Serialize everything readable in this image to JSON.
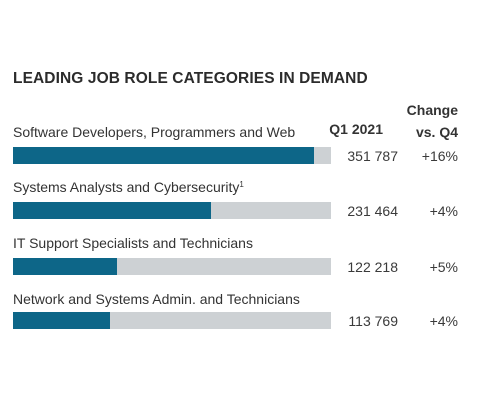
{
  "chart_data": {
    "type": "bar",
    "title": "LEADING JOB ROLE CATEGORIES IN DEMAND",
    "column_headers": {
      "q1": "Q1 2021",
      "change_line1": "Change",
      "change_line2": "vs. Q4"
    },
    "categories": [
      "Software Developers, Programmers and Web",
      "Systems Analysts and Cybersecurity",
      "IT Support Specialists and Technicians",
      "Network and Systems Admin. and Technicians"
    ],
    "footnote_marks": [
      "",
      "1",
      "",
      ""
    ],
    "values": [
      351787,
      231464,
      122218,
      113769
    ],
    "display_values": [
      "351 787",
      "231 464",
      "122 218",
      "113 769"
    ],
    "change": [
      "+16%",
      "+4%",
      "+5%",
      "+4%"
    ],
    "xlim": [
      0,
      372000
    ],
    "colors": {
      "bar": "#0d6688",
      "track": "#cdd1d4"
    }
  }
}
